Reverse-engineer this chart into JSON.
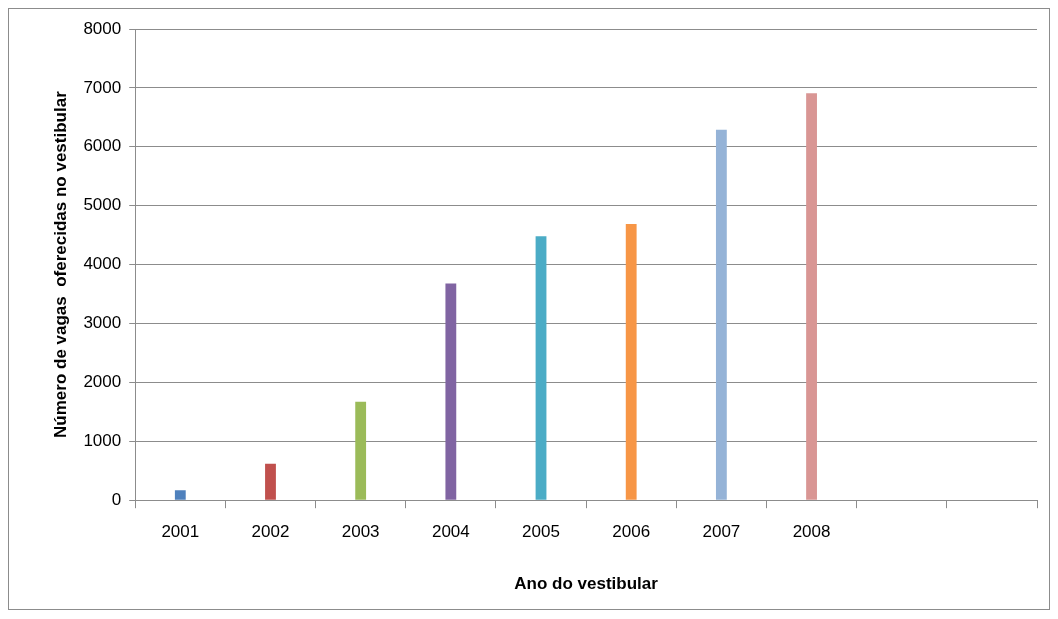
{
  "chart_data": {
    "type": "bar",
    "xlabel": "Ano do vestibular",
    "ylabel": "Número de vagas  oferecidas no vestibular",
    "categories": [
      "2001",
      "2002",
      "2003",
      "2004",
      "2005",
      "2006",
      "2007",
      "2008",
      null,
      null
    ],
    "values": [
      170,
      620,
      1670,
      3680,
      4480,
      4690,
      6290,
      6910,
      null,
      null
    ],
    "colors": [
      "#4f81bd",
      "#c0504d",
      "#9bbb59",
      "#8064a2",
      "#4bacc6",
      "#f79646",
      "#95b3d7",
      "#d99694",
      "#4f81bd",
      "#4f81bd"
    ],
    "ylim": [
      0,
      8000
    ],
    "yticks": [
      0,
      1000,
      2000,
      3000,
      4000,
      5000,
      6000,
      7000,
      8000
    ],
    "grid": "y",
    "legend": false
  }
}
